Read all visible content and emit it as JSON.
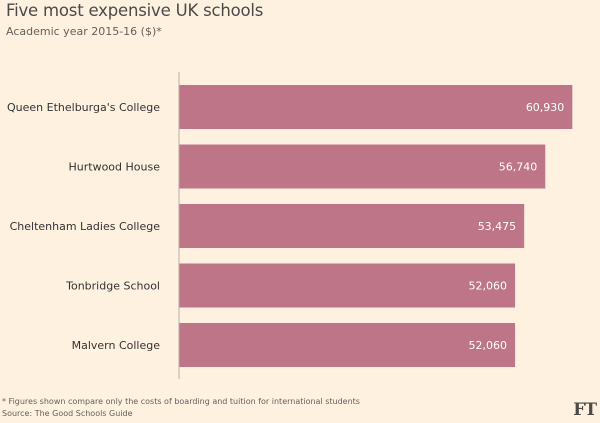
{
  "header": {
    "title": "Five most expensive UK schools",
    "subtitle": "Academic year 2015-16 ($)*"
  },
  "footer": {
    "footnote": "* Figures shown compare only the costs of boarding and tuition for international students",
    "source": "Source: The Good Schools Guide",
    "logo": "FT"
  },
  "colors": {
    "background": "#fff1e0",
    "bar": "#bd7587",
    "axis": "#b7aea6",
    "label_text": "#333333",
    "value_text": "#ffffff"
  },
  "chart_data": {
    "type": "bar",
    "orientation": "horizontal",
    "categories": [
      "Queen Ethelburga's College",
      "Hurtwood House",
      "Cheltenham Ladies College",
      "Tonbridge School",
      "Malvern College"
    ],
    "values": [
      60930,
      56740,
      53475,
      52060,
      52060
    ],
    "value_labels": [
      "60,930",
      "56,740",
      "53,475",
      "52,060",
      "52,060"
    ],
    "title": "Five most expensive UK schools",
    "subtitle": "Academic year 2015-16 ($)*",
    "xlabel": "",
    "ylabel": "",
    "xlim": [
      0,
      61500
    ],
    "grid": false,
    "legend": "none"
  }
}
